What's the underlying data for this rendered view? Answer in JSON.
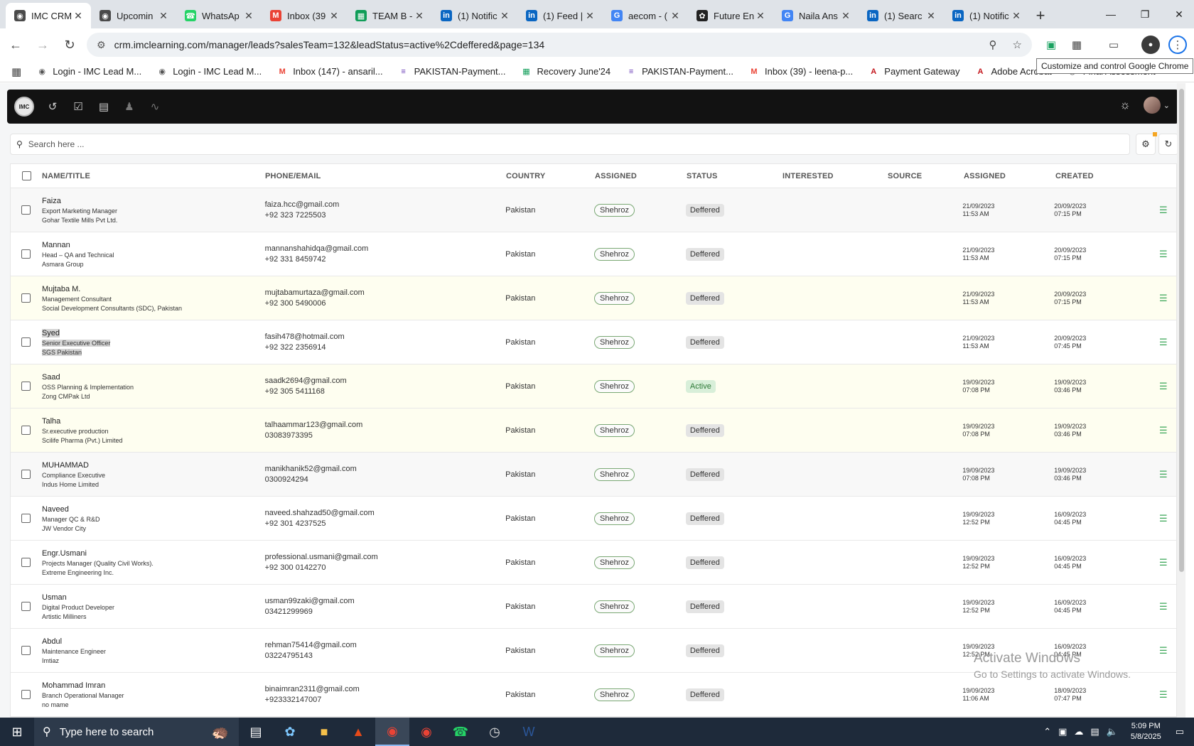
{
  "browser": {
    "tabs": [
      {
        "title": "IMC CRM",
        "icon": "imc-icon",
        "color": "#4a4a4a",
        "active": true
      },
      {
        "title": "Upcomin",
        "icon": "imc-icon",
        "color": "#4a4a4a"
      },
      {
        "title": "WhatsAp",
        "icon": "whatsapp-icon",
        "color": "#25d366"
      },
      {
        "title": "Inbox (39",
        "icon": "gmail-icon",
        "color": "#ea4335"
      },
      {
        "title": "TEAM B -",
        "icon": "sheets-icon",
        "color": "#0f9d58"
      },
      {
        "title": "(1) Notific",
        "icon": "linkedin-icon",
        "color": "#0a66c2"
      },
      {
        "title": "(1) Feed |",
        "icon": "linkedin-icon",
        "color": "#0a66c2"
      },
      {
        "title": "aecom - (",
        "icon": "google-icon",
        "color": "#4285f4"
      },
      {
        "title": "Future En",
        "icon": "openai-icon",
        "color": "#222222"
      },
      {
        "title": "Naila Ans",
        "icon": "google-icon",
        "color": "#4285f4"
      },
      {
        "title": "(1) Searc",
        "icon": "linkedin-icon",
        "color": "#0a66c2"
      },
      {
        "title": "(1) Notific",
        "icon": "linkedin-icon",
        "color": "#0a66c2"
      }
    ],
    "url": "crm.imclearning.com/manager/leads?salesTeam=132&leadStatus=active%2Cdeffered&page=134",
    "tooltip": "Customize and control Google Chrome",
    "bookmarks": [
      {
        "label": "Login - IMC Lead M...",
        "icon": "imc-icon",
        "color": "#555555"
      },
      {
        "label": "Login - IMC Lead M...",
        "icon": "imc-icon",
        "color": "#555555"
      },
      {
        "label": "Inbox (147) - ansaril...",
        "icon": "gmail-icon",
        "color": "#ea4335"
      },
      {
        "label": "PAKISTAN-Payment...",
        "icon": "forms-icon",
        "color": "#673ab7"
      },
      {
        "label": "Recovery June'24",
        "icon": "sheets-icon",
        "color": "#0f9d58"
      },
      {
        "label": "PAKISTAN-Payment...",
        "icon": "forms-icon",
        "color": "#673ab7"
      },
      {
        "label": "Inbox (39) - leena-p...",
        "icon": "gmail-icon",
        "color": "#ea4335"
      },
      {
        "label": "Payment Gateway",
        "icon": "acrobat-icon",
        "color": "#c4161c"
      },
      {
        "label": "Adobe Acrobat",
        "icon": "acrobat-icon",
        "color": "#c4161c"
      },
      {
        "label": "Final Assessment",
        "icon": "imc-icon",
        "color": "#555555"
      }
    ]
  },
  "app": {
    "logo_text": "IMC",
    "search_placeholder": "Search here ...",
    "columns": [
      "NAME/TITLE",
      "PHONE/EMAIL",
      "COUNTRY",
      "ASSIGNED",
      "STATUS",
      "INTERESTED",
      "SOURCE",
      "ASSIGNED",
      "CREATED"
    ],
    "rows": [
      {
        "name": "Faiza",
        "title": "Export Marketing Manager",
        "company": "Gohar Textile Mills Pvt Ltd.",
        "email": "faiza.hcc@gmail.com",
        "phone": "+92 323 7225503",
        "country": "Pakistan",
        "assigned_to": "Shehroz",
        "status": "Deffered",
        "assigned_date": "21/09/2023",
        "assigned_time": "11:53 AM",
        "created_date": "20/09/2023",
        "created_time": "07:15 PM",
        "style": "sel"
      },
      {
        "name": "Mannan",
        "title": "Head – QA and Technical",
        "company": "Asmara Group",
        "email": "mannanshahidqa@gmail.com",
        "phone": "+92 331 8459742",
        "country": "Pakistan",
        "assigned_to": "Shehroz",
        "status": "Deffered",
        "assigned_date": "21/09/2023",
        "assigned_time": "11:53 AM",
        "created_date": "20/09/2023",
        "created_time": "07:15 PM",
        "style": ""
      },
      {
        "name": "Mujtaba M.",
        "title": "Management Consultant",
        "company": "Social Development Consultants (SDC), Pakistan",
        "email": "mujtabamurtaza@gmail.com",
        "phone": "+92 300 5490006",
        "country": "Pakistan",
        "assigned_to": "Shehroz",
        "status": "Deffered",
        "assigned_date": "21/09/2023",
        "assigned_time": "11:53 AM",
        "created_date": "20/09/2023",
        "created_time": "07:15 PM",
        "style": "hl"
      },
      {
        "name": "Syed",
        "title": "Senior Executive Officer",
        "company": "SGS Pakistan",
        "email": "fasih478@hotmail.com",
        "phone": "+92 322 2356914",
        "country": "Pakistan",
        "assigned_to": "Shehroz",
        "status": "Deffered",
        "assigned_date": "21/09/2023",
        "assigned_time": "11:53 AM",
        "created_date": "20/09/2023",
        "created_time": "07:45 PM",
        "style": "",
        "highlighted": true
      },
      {
        "name": "Saad",
        "title": "OSS Planning & Implementation",
        "company": "Zong CMPak Ltd",
        "email": "saadk2694@gmail.com",
        "phone": "+92 305 5411168",
        "country": "Pakistan",
        "assigned_to": "Shehroz",
        "status": "Active",
        "assigned_date": "19/09/2023",
        "assigned_time": "07:08 PM",
        "created_date": "19/09/2023",
        "created_time": "03:46 PM",
        "style": "hl"
      },
      {
        "name": "Talha",
        "title": "Sr.executive production",
        "company": "Scilife Pharma (Pvt.) Limited",
        "email": "talhaammar123@gmail.com",
        "phone": "03083973395",
        "country": "Pakistan",
        "assigned_to": "Shehroz",
        "status": "Deffered",
        "assigned_date": "19/09/2023",
        "assigned_time": "07:08 PM",
        "created_date": "19/09/2023",
        "created_time": "03:46 PM",
        "style": "hl"
      },
      {
        "name": "MUHAMMAD",
        "title": "Compliance Executive",
        "company": "Indus Home Limited",
        "email": "manikhanik52@gmail.com",
        "phone": "0300924294",
        "country": "Pakistan",
        "assigned_to": "Shehroz",
        "status": "Deffered",
        "assigned_date": "19/09/2023",
        "assigned_time": "07:08 PM",
        "created_date": "19/09/2023",
        "created_time": "03:46 PM",
        "style": "sel"
      },
      {
        "name": "Naveed",
        "title": "Manager QC & R&D",
        "company": "JW Vendor City",
        "email": "naveed.shahzad50@gmail.com",
        "phone": "+92 301 4237525",
        "country": "Pakistan",
        "assigned_to": "Shehroz",
        "status": "Deffered",
        "assigned_date": "19/09/2023",
        "assigned_time": "12:52 PM",
        "created_date": "16/09/2023",
        "created_time": "04:45 PM",
        "style": ""
      },
      {
        "name": "Engr.Usmani",
        "title": "Projects Manager (Quality Civil Works).",
        "company": "Extreme Engineering Inc.",
        "email": "professional.usmani@gmail.com",
        "phone": "+92 300 0142270",
        "country": "Pakistan",
        "assigned_to": "Shehroz",
        "status": "Deffered",
        "assigned_date": "19/09/2023",
        "assigned_time": "12:52 PM",
        "created_date": "16/09/2023",
        "created_time": "04:45 PM",
        "style": ""
      },
      {
        "name": "Usman",
        "title": "Digital Product Developer",
        "company": "Artistic Milliners",
        "email": "usman99zaki@gmail.com",
        "phone": "03421299969",
        "country": "Pakistan",
        "assigned_to": "Shehroz",
        "status": "Deffered",
        "assigned_date": "19/09/2023",
        "assigned_time": "12:52 PM",
        "created_date": "16/09/2023",
        "created_time": "04:45 PM",
        "style": ""
      },
      {
        "name": "Abdul",
        "title": "Maintenance Engineer",
        "company": "Imtiaz",
        "email": "rehman75414@gmail.com",
        "phone": "03224795143",
        "country": "Pakistan",
        "assigned_to": "Shehroz",
        "status": "Deffered",
        "assigned_date": "19/09/2023",
        "assigned_time": "12:52 PM",
        "created_date": "16/09/2023",
        "created_time": "04:45 PM",
        "style": ""
      },
      {
        "name": "Mohammad Imran",
        "title": "Branch Operational Manager",
        "company": "no mame",
        "email": "binaimran2311@gmail.com",
        "phone": "+923332147007",
        "country": "Pakistan",
        "assigned_to": "Shehroz",
        "status": "Deffered",
        "assigned_date": "19/09/2023",
        "assigned_time": "11:06 AM",
        "created_date": "18/09/2023",
        "created_time": "07:47 PM",
        "style": ""
      }
    ]
  },
  "watermark": {
    "line1": "Activate Windows",
    "line2": "Go to Settings to activate Windows."
  },
  "taskbar": {
    "search_placeholder": "Type here to search",
    "time": "5:09 PM",
    "date": "5/8/2025"
  }
}
